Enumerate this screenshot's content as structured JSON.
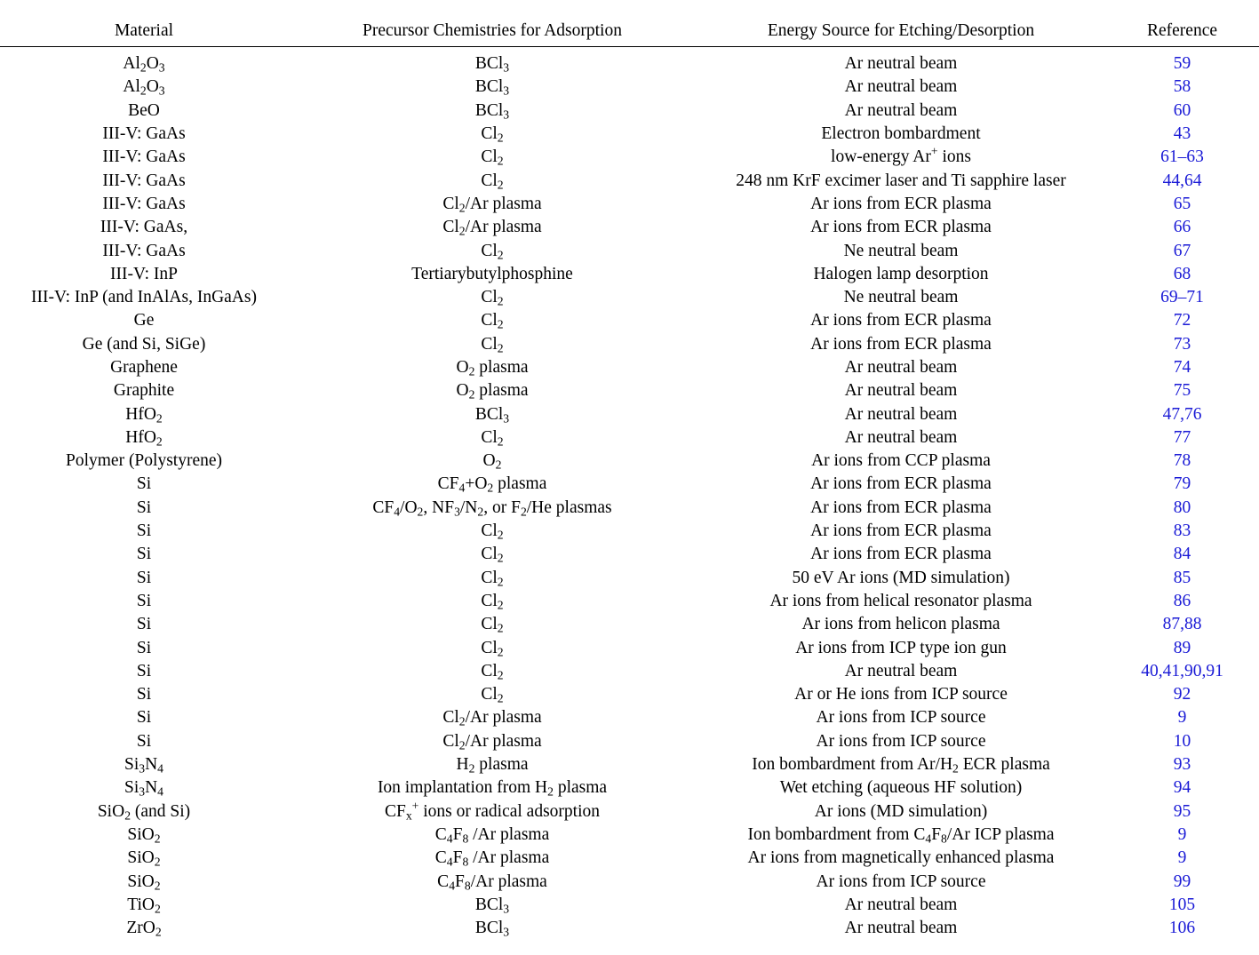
{
  "table": {
    "headers": [
      "Material",
      "Precursor Chemistries for Adsorption",
      "Energy Source for Etching/Desorption",
      "Reference"
    ],
    "rows": [
      [
        "Al{2}O{3}",
        "BCl{3}",
        "Ar neutral beam",
        "59"
      ],
      [
        "Al{2}O{3}",
        "BCl{3}",
        "Ar neutral beam",
        "58"
      ],
      [
        "BeO",
        "BCl{3}",
        "Ar neutral beam",
        "60"
      ],
      [
        "III-V: GaAs",
        "Cl{2}",
        "Electron bombardment",
        "43"
      ],
      [
        "III-V: GaAs",
        "Cl{2}",
        "low-energy Ar[+] ions",
        "61–63"
      ],
      [
        "III-V: GaAs",
        "Cl{2}",
        "248 nm KrF excimer laser and Ti sapphire laser",
        "44,64"
      ],
      [
        "III-V: GaAs",
        "Cl{2}/Ar plasma",
        "Ar ions from ECR plasma",
        "65"
      ],
      [
        "III-V: GaAs,",
        "Cl{2}/Ar plasma",
        "Ar ions from ECR plasma",
        "66"
      ],
      [
        "III-V: GaAs",
        "Cl{2}",
        "Ne neutral beam",
        "67"
      ],
      [
        "III-V: InP",
        "Tertiarybutylphosphine",
        "Halogen lamp desorption",
        "68"
      ],
      [
        "III-V: InP (and InAlAs, InGaAs)",
        "Cl{2}",
        "Ne neutral beam",
        "69–71"
      ],
      [
        "Ge",
        "Cl{2}",
        "Ar ions from ECR plasma",
        "72"
      ],
      [
        "Ge (and Si, SiGe)",
        "Cl{2}",
        "Ar ions from ECR plasma",
        "73"
      ],
      [
        "Graphene",
        "O{2} plasma",
        "Ar neutral beam",
        "74"
      ],
      [
        "Graphite",
        "O{2} plasma",
        "Ar neutral beam",
        "75"
      ],
      [
        "HfO{2}",
        "BCl{3}",
        "Ar neutral beam",
        "47,76"
      ],
      [
        "HfO{2}",
        "Cl{2}",
        "Ar neutral beam",
        "77"
      ],
      [
        "Polymer (Polystyrene)",
        "O{2}",
        "Ar ions from CCP plasma",
        "78"
      ],
      [
        "Si",
        "CF{4}+O{2} plasma",
        "Ar ions from ECR plasma",
        "79"
      ],
      [
        "Si",
        "CF{4}/O{2}, NF{3}/N{2}, or F{2}/He plasmas",
        "Ar ions from ECR plasma",
        "80"
      ],
      [
        "Si",
        "Cl{2}",
        "Ar ions from ECR plasma",
        "83"
      ],
      [
        "Si",
        "Cl{2}",
        "Ar ions from ECR plasma",
        "84"
      ],
      [
        "Si",
        "Cl{2}",
        "50 eV Ar ions (MD simulation)",
        "85"
      ],
      [
        "Si",
        "Cl{2}",
        "Ar ions from helical resonator plasma",
        "86"
      ],
      [
        "Si",
        "Cl{2}",
        "Ar ions from helicon plasma",
        "87,88"
      ],
      [
        "Si",
        "Cl{2}",
        "Ar ions from ICP type ion gun",
        "89"
      ],
      [
        "Si",
        "Cl{2}",
        "Ar neutral beam",
        "40,41,90,91"
      ],
      [
        "Si",
        "Cl{2}",
        "Ar or He ions from ICP source",
        "92"
      ],
      [
        "Si",
        "Cl{2}/Ar plasma",
        "Ar ions from ICP source",
        "9"
      ],
      [
        "Si",
        "Cl{2}/Ar plasma",
        "Ar ions from ICP source",
        "10"
      ],
      [
        "Si{3}N{4}",
        "H{2} plasma",
        "Ion bombardment from Ar/H{2} ECR plasma",
        "93"
      ],
      [
        "Si{3}N{4}",
        "Ion implantation from H{2} plasma",
        "Wet etching (aqueous HF solution)",
        "94"
      ],
      [
        "SiO{2} (and Si)",
        "CF{x}[+] ions or radical adsorption",
        "Ar ions (MD simulation)",
        "95"
      ],
      [
        "SiO{2}",
        "C{4}F{8} /Ar plasma",
        "Ion bombardment from C{4}F{8}/Ar ICP plasma",
        "9"
      ],
      [
        "SiO{2}",
        "C{4}F{8} /Ar plasma",
        "Ar ions from magnetically enhanced plasma",
        "9"
      ],
      [
        "SiO{2}",
        "C{4}F{8}/Ar plasma",
        "Ar ions from ICP source",
        "99"
      ],
      [
        "TiO{2}",
        "BCl{3}",
        "Ar neutral beam",
        "105"
      ],
      [
        "ZrO{2}",
        "BCl{3}",
        "Ar neutral beam",
        "106"
      ]
    ]
  }
}
